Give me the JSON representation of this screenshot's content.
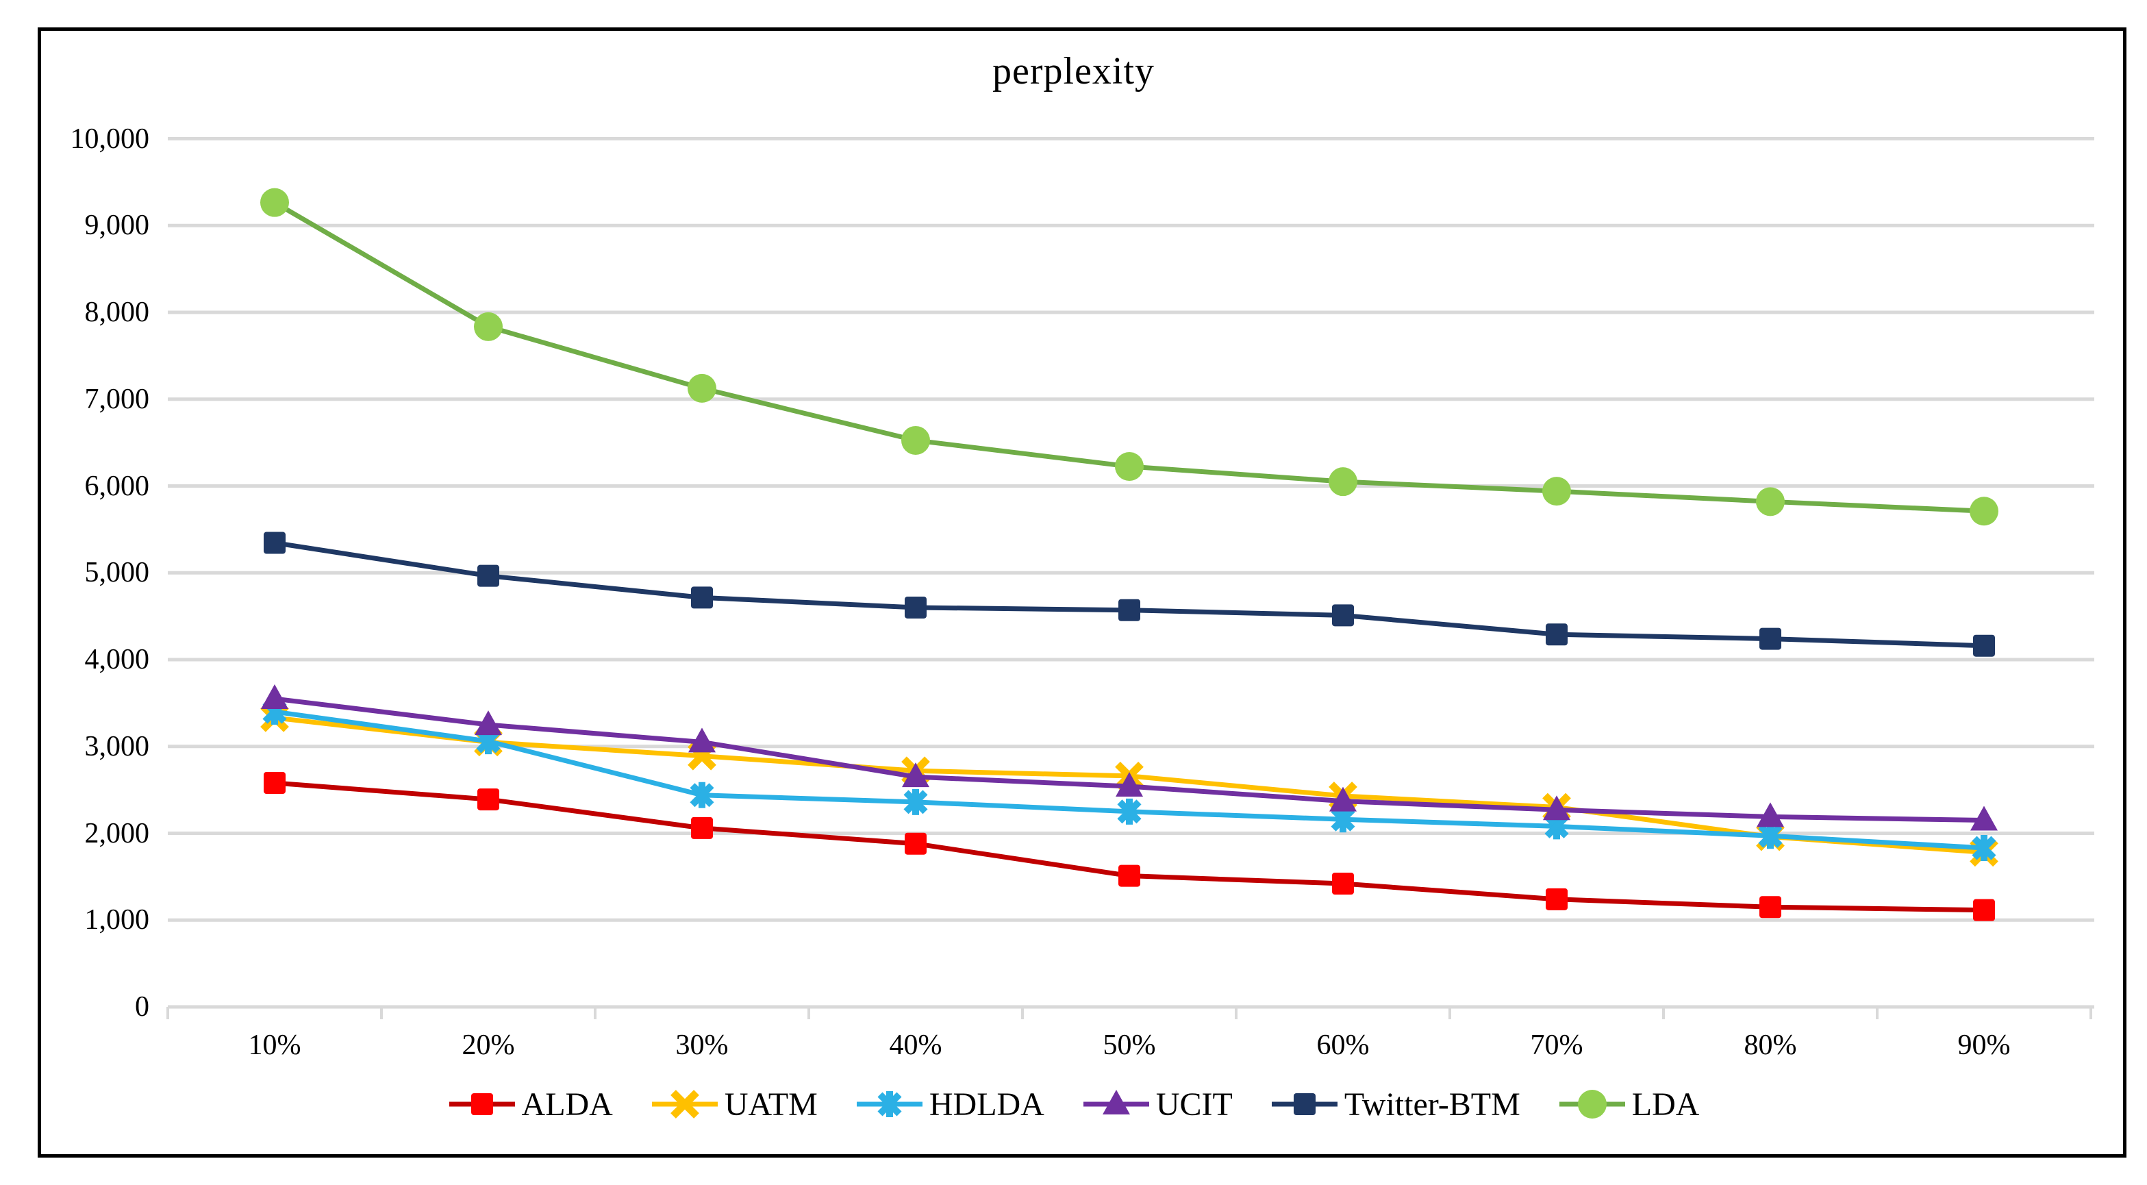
{
  "chart_data": {
    "type": "line",
    "title": "perplexity",
    "categories": [
      "10%",
      "20%",
      "30%",
      "40%",
      "50%",
      "60%",
      "70%",
      "80%",
      "90%"
    ],
    "series": [
      {
        "name": "ALDA",
        "marker": "square",
        "color": "#FF0000",
        "line_color": "#C00000",
        "values": [
          2580,
          2390,
          2060,
          1880,
          1510,
          1420,
          1240,
          1150,
          1115
        ]
      },
      {
        "name": "UATM",
        "marker": "x",
        "color": "#FFC000",
        "line_color": "#FFC000",
        "values": [
          3330,
          3050,
          2890,
          2720,
          2660,
          2430,
          2300,
          1960,
          1780
        ]
      },
      {
        "name": "HDLDA",
        "marker": "asterisk",
        "color": "#2BB0E5",
        "line_color": "#2BB0E5",
        "values": [
          3400,
          3060,
          2440,
          2360,
          2250,
          2160,
          2080,
          1970,
          1830
        ]
      },
      {
        "name": "UCIT",
        "marker": "triangle",
        "color": "#7030A0",
        "line_color": "#7030A0",
        "values": [
          3550,
          3250,
          3050,
          2650,
          2540,
          2370,
          2270,
          2190,
          2150
        ]
      },
      {
        "name": "Twitter-BTM",
        "marker": "square",
        "color": "#1F3864",
        "line_color": "#1F3864",
        "values": [
          5345,
          4965,
          4715,
          4600,
          4570,
          4510,
          4290,
          4240,
          4160
        ]
      },
      {
        "name": "LDA",
        "marker": "circle",
        "color": "#92D050",
        "line_color": "#70AD47",
        "values": [
          9265,
          7835,
          7125,
          6525,
          6225,
          6050,
          5940,
          5820,
          5710
        ]
      }
    ],
    "y_ticks": [
      "0",
      "1,000",
      "2,000",
      "3,000",
      "4,000",
      "5,000",
      "6,000",
      "7,000",
      "8,000",
      "9,000",
      "10,000"
    ],
    "ylim": [
      0,
      10000
    ],
    "xlabel": "",
    "ylabel": "",
    "grid": true,
    "gridline_color": "#D9D9D9",
    "legend_position": "bottom"
  }
}
